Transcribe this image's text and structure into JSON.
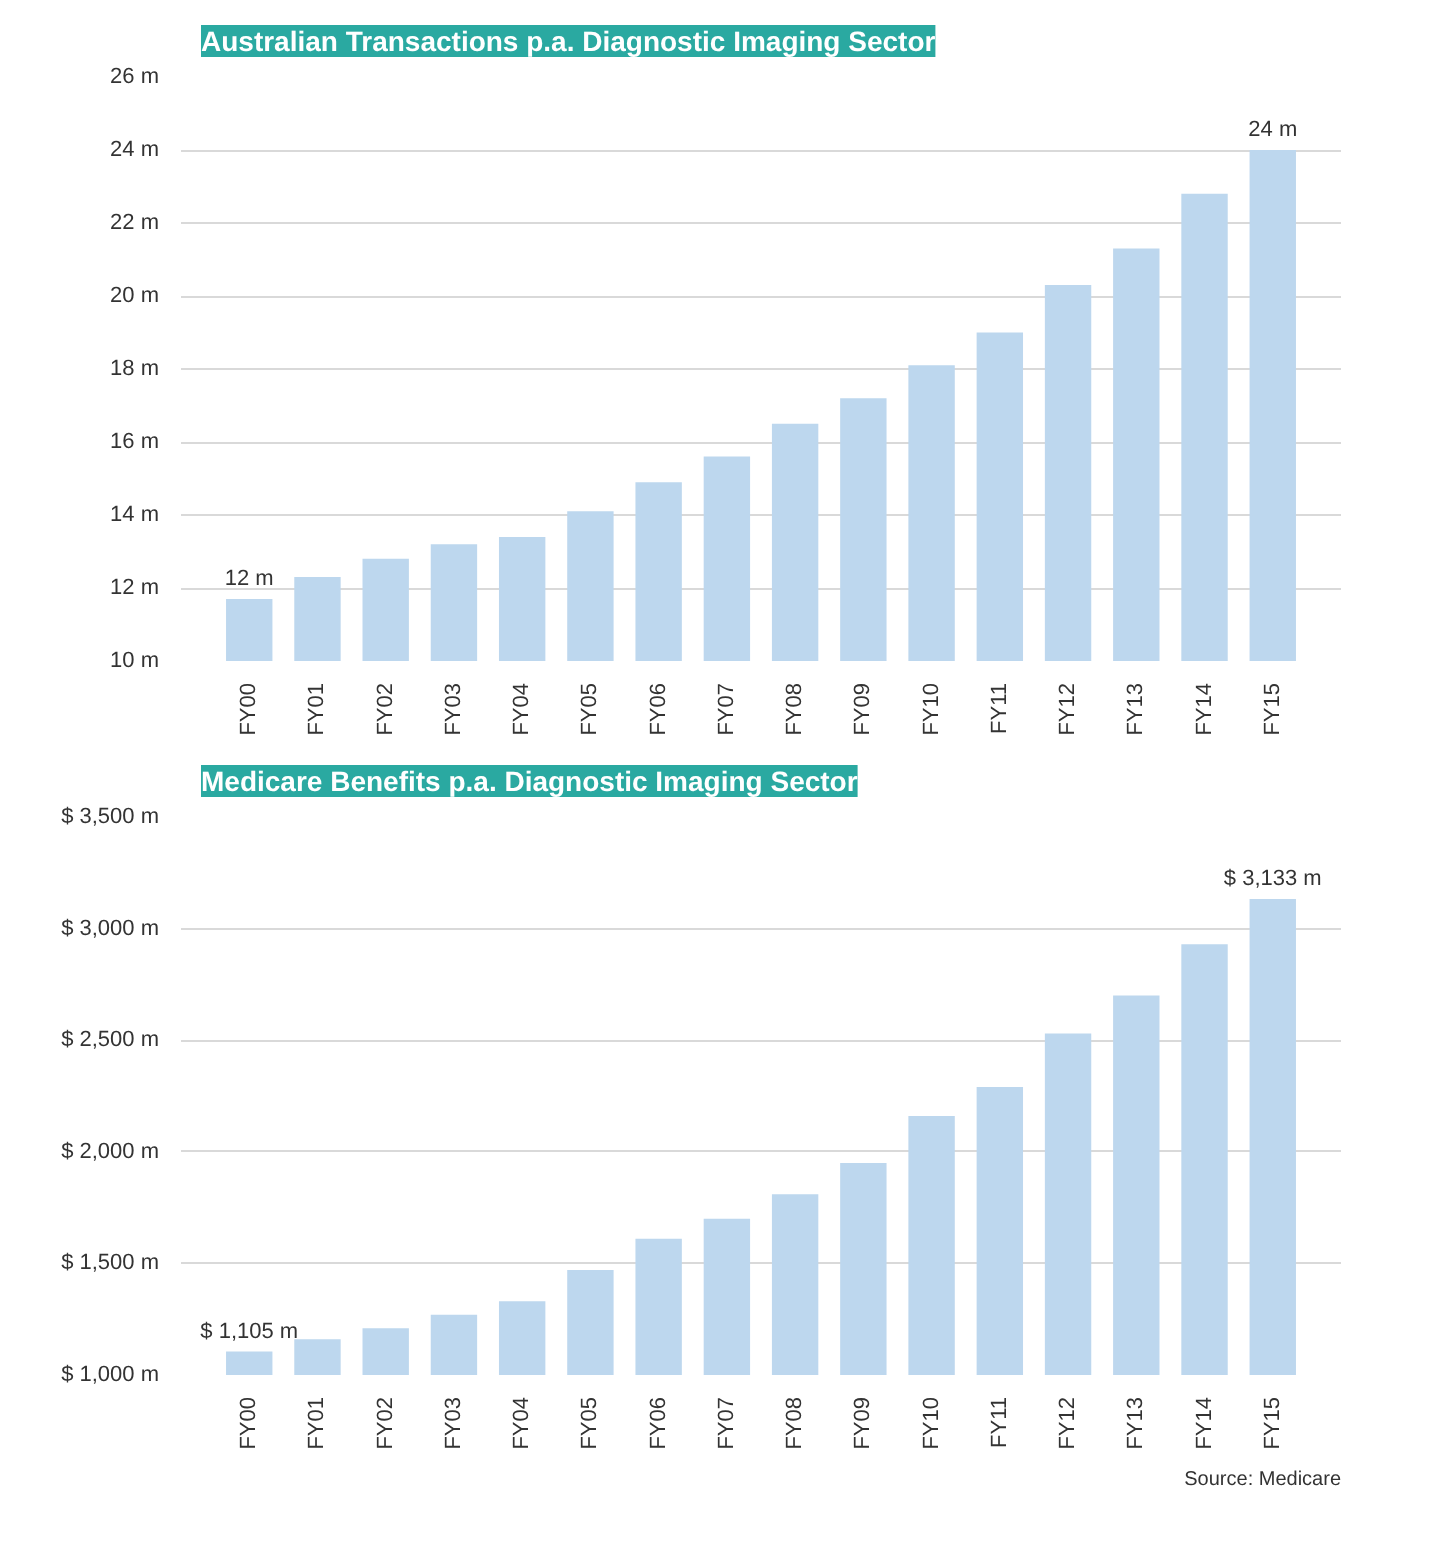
{
  "chart_data": [
    {
      "type": "bar",
      "title": "Australian Transactions p.a. Diagnostic Imaging Sector",
      "categories": [
        "FY00",
        "FY01",
        "FY02",
        "FY03",
        "FY04",
        "FY05",
        "FY06",
        "FY07",
        "FY08",
        "FY09",
        "FY10",
        "FY11",
        "FY12",
        "FY13",
        "FY14",
        "FY15"
      ],
      "values": [
        11.7,
        12.3,
        12.8,
        13.2,
        13.4,
        14.1,
        14.9,
        15.6,
        16.5,
        17.2,
        18.1,
        19.0,
        20.3,
        21.3,
        22.8,
        24.0
      ],
      "value_labels": [
        "12 m",
        null,
        null,
        null,
        null,
        null,
        null,
        null,
        null,
        null,
        null,
        null,
        null,
        null,
        null,
        "24 m"
      ],
      "color": "#bdd7ee",
      "ylim": [
        10,
        26
      ],
      "yticks": [
        {
          "value": 10,
          "label": "10 m"
        },
        {
          "value": 12,
          "label": "12 m"
        },
        {
          "value": 14,
          "label": "14 m"
        },
        {
          "value": 16,
          "label": "16 m"
        },
        {
          "value": 18,
          "label": "18 m"
        },
        {
          "value": 20,
          "label": "20 m"
        },
        {
          "value": 22,
          "label": "22 m"
        },
        {
          "value": 24,
          "label": "24 m"
        },
        {
          "value": 26,
          "label": "26 m"
        }
      ],
      "grid": "y"
    },
    {
      "type": "bar",
      "title": "Medicare Benefits p.a. Diagnostic Imaging Sector",
      "categories": [
        "FY00",
        "FY01",
        "FY02",
        "FY03",
        "FY04",
        "FY05",
        "FY06",
        "FY07",
        "FY08",
        "FY09",
        "FY10",
        "FY11",
        "FY12",
        "FY13",
        "FY14",
        "FY15"
      ],
      "values": [
        1105,
        1160,
        1210,
        1270,
        1330,
        1470,
        1610,
        1700,
        1810,
        1950,
        2160,
        2290,
        2530,
        2700,
        2930,
        3133
      ],
      "value_labels": [
        "$ 1,105 m",
        null,
        null,
        null,
        null,
        null,
        null,
        null,
        null,
        null,
        null,
        null,
        null,
        null,
        null,
        "$ 3,133 m"
      ],
      "color": "#bdd7ee",
      "ylim": [
        1000,
        3500
      ],
      "yticks": [
        {
          "value": 1000,
          "label": "$ 1,000 m"
        },
        {
          "value": 1500,
          "label": "$ 1,500 m"
        },
        {
          "value": 2000,
          "label": "$ 2,000 m"
        },
        {
          "value": 2500,
          "label": "$ 2,500 m"
        },
        {
          "value": 3000,
          "label": "$ 3,000 m"
        },
        {
          "value": 3500,
          "label": "$ 3,500 m"
        }
      ],
      "grid": "y",
      "annotations": [
        "Source: Medicare"
      ]
    }
  ]
}
